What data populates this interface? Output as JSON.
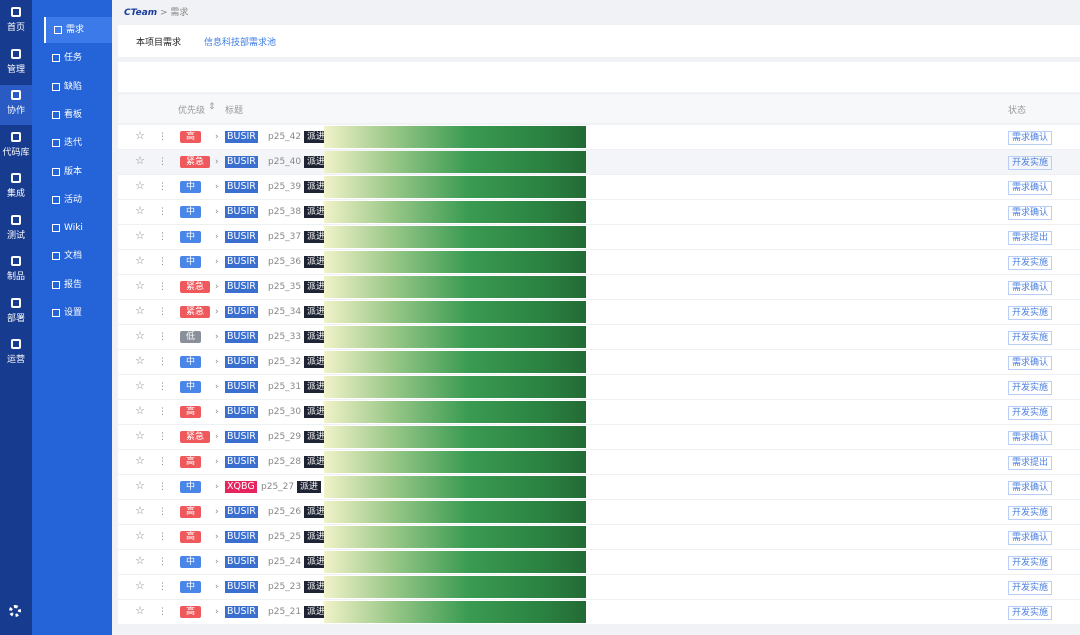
{
  "nav": {
    "primary": [
      "首页",
      "管理",
      "协作",
      "代码库",
      "集成",
      "测试",
      "制品",
      "部署",
      "运营"
    ],
    "primary_active": 2,
    "secondary": [
      "需求",
      "任务",
      "缺陷",
      "看板",
      "迭代",
      "版本",
      "活动",
      "Wiki",
      "文档",
      "报告",
      "设置"
    ],
    "secondary_active": 0
  },
  "breadcrumb": {
    "team": "CTeam",
    "page": "需求"
  },
  "tabs": [
    "本项目需求",
    "信息科技部需求池"
  ],
  "table": {
    "headers": {
      "priority": "优先级",
      "title": "标题",
      "status": "状态"
    },
    "rows": [
      {
        "priority": "高",
        "priority_color": "#f0595c",
        "tag": "BUSIR",
        "tag_color": "#3a6fd0",
        "id": "p25_42",
        "flag": "派进",
        "status": "需求确认"
      },
      {
        "priority": "紧急",
        "priority_color": "#f0595c",
        "tag": "BUSIR",
        "tag_color": "#3a6fd0",
        "id": "p25_40",
        "flag": "派进",
        "status": "开发实施"
      },
      {
        "priority": "中",
        "priority_color": "#4a86e8",
        "tag": "BUSIR",
        "tag_color": "#3a6fd0",
        "id": "p25_39",
        "flag": "派进",
        "status": "需求确认"
      },
      {
        "priority": "中",
        "priority_color": "#4a86e8",
        "tag": "BUSIR",
        "tag_color": "#3a6fd0",
        "id": "p25_38",
        "flag": "派进",
        "status": "需求确认"
      },
      {
        "priority": "中",
        "priority_color": "#4a86e8",
        "tag": "BUSIR",
        "tag_color": "#3a6fd0",
        "id": "p25_37",
        "flag": "派进",
        "status": "需求提出"
      },
      {
        "priority": "中",
        "priority_color": "#4a86e8",
        "tag": "BUSIR",
        "tag_color": "#3a6fd0",
        "id": "p25_36",
        "flag": "派进",
        "status": "开发实施"
      },
      {
        "priority": "紧急",
        "priority_color": "#f0595c",
        "tag": "BUSIR",
        "tag_color": "#3a6fd0",
        "id": "p25_35",
        "flag": "派进",
        "status": "需求确认"
      },
      {
        "priority": "紧急",
        "priority_color": "#f0595c",
        "tag": "BUSIR",
        "tag_color": "#3a6fd0",
        "id": "p25_34",
        "flag": "派进",
        "status": "开发实施"
      },
      {
        "priority": "低",
        "priority_color": "#8a9099",
        "tag": "BUSIR",
        "tag_color": "#3a6fd0",
        "id": "p25_33",
        "flag": "派进",
        "status": "开发实施"
      },
      {
        "priority": "中",
        "priority_color": "#4a86e8",
        "tag": "BUSIR",
        "tag_color": "#3a6fd0",
        "id": "p25_32",
        "flag": "派进",
        "status": "需求确认"
      },
      {
        "priority": "中",
        "priority_color": "#4a86e8",
        "tag": "BUSIR",
        "tag_color": "#3a6fd0",
        "id": "p25_31",
        "flag": "派进",
        "status": "开发实施"
      },
      {
        "priority": "高",
        "priority_color": "#f0595c",
        "tag": "BUSIR",
        "tag_color": "#3a6fd0",
        "id": "p25_30",
        "flag": "派进",
        "status": "开发实施"
      },
      {
        "priority": "紧急",
        "priority_color": "#f0595c",
        "tag": "BUSIR",
        "tag_color": "#3a6fd0",
        "id": "p25_29",
        "flag": "派进",
        "status": "需求确认"
      },
      {
        "priority": "高",
        "priority_color": "#f0595c",
        "tag": "BUSIR",
        "tag_color": "#3a6fd0",
        "id": "p25_28",
        "flag": "派进",
        "status": "需求提出"
      },
      {
        "priority": "中",
        "priority_color": "#4a86e8",
        "tag": "XQBG",
        "tag_color": "#e8245f",
        "id": "p25_27",
        "flag": "派进",
        "status": "需求确认"
      },
      {
        "priority": "高",
        "priority_color": "#f0595c",
        "tag": "BUSIR",
        "tag_color": "#3a6fd0",
        "id": "p25_26",
        "flag": "派进",
        "status": "开发实施"
      },
      {
        "priority": "高",
        "priority_color": "#f0595c",
        "tag": "BUSIR",
        "tag_color": "#3a6fd0",
        "id": "p25_25",
        "flag": "派进",
        "status": "需求确认"
      },
      {
        "priority": "中",
        "priority_color": "#4a86e8",
        "tag": "BUSIR",
        "tag_color": "#3a6fd0",
        "id": "p25_24",
        "flag": "派进",
        "status": "开发实施"
      },
      {
        "priority": "中",
        "priority_color": "#4a86e8",
        "tag": "BUSIR",
        "tag_color": "#3a6fd0",
        "id": "p25_23",
        "flag": "派进",
        "status": "开发实施"
      },
      {
        "priority": "高",
        "priority_color": "#f0595c",
        "tag": "BUSIR",
        "tag_color": "#3a6fd0",
        "id": "p25_21",
        "flag": "派进",
        "status": "开发实施"
      }
    ]
  }
}
